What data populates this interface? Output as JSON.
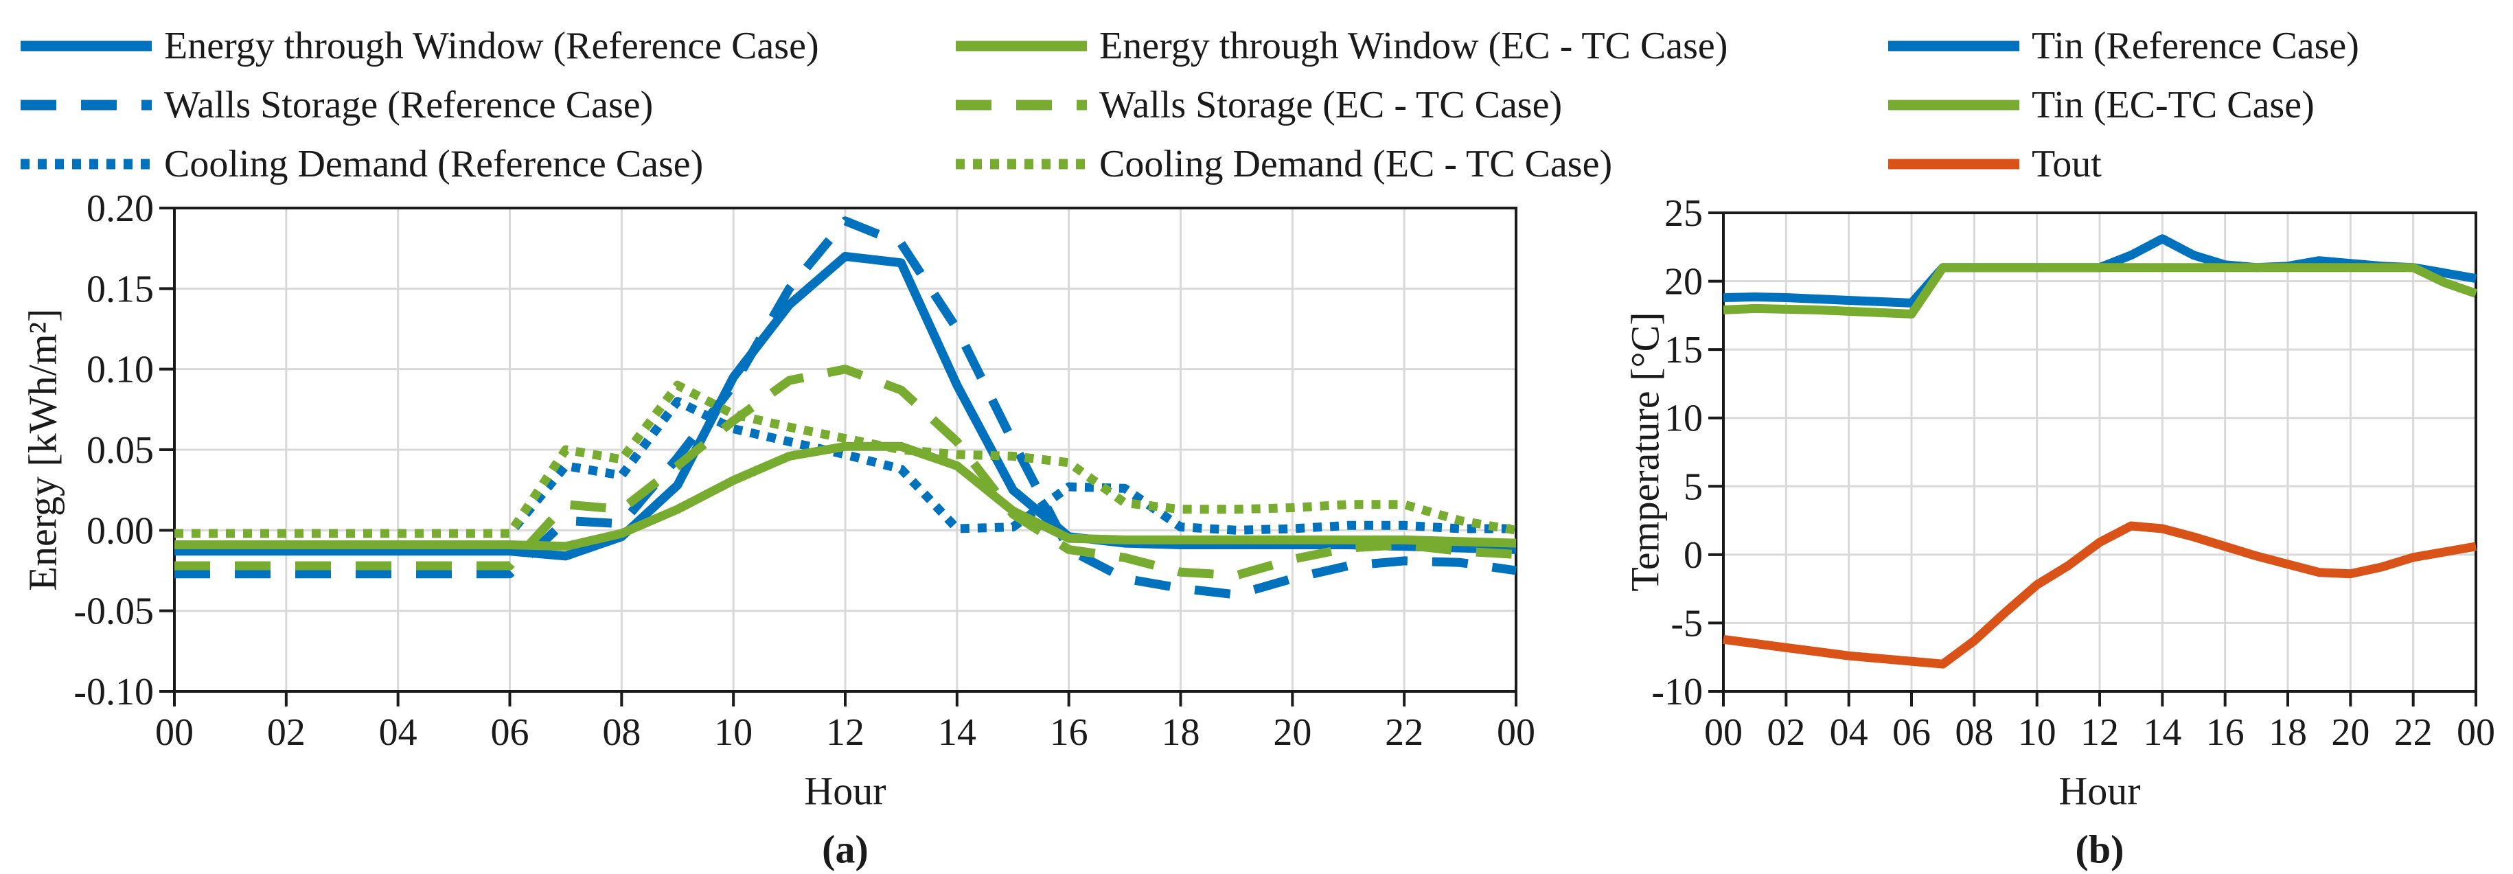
{
  "figure": {
    "background": "#ffffff",
    "accent_colors": {
      "reference_blue": "#0072BD",
      "ectc_green": "#77AC30",
      "tout_orange": "#D95319",
      "grid_gray": "#d9d9d9",
      "axis_black": "#1a1a1a"
    }
  },
  "chart_data": [
    {
      "type": "line",
      "panel_label": "(a)",
      "xlabel": "Hour",
      "ylabel": "Energy [kWh/m²]",
      "ylim": [
        -0.1,
        0.2
      ],
      "xlim": [
        0,
        24
      ],
      "grid": "on",
      "legend_position": "top, two columns",
      "x": [
        0,
        1,
        2,
        3,
        4,
        5,
        6,
        7,
        8,
        9,
        10,
        11,
        12,
        13,
        14,
        15,
        16,
        17,
        18,
        19,
        20,
        21,
        22,
        23,
        24
      ],
      "xticks": [
        0,
        2,
        4,
        6,
        8,
        10,
        12,
        14,
        16,
        18,
        20,
        22,
        24
      ],
      "xtick_labels": [
        "00",
        "02",
        "04",
        "06",
        "08",
        "10",
        "12",
        "14",
        "16",
        "18",
        "20",
        "22",
        "00"
      ],
      "yticks": [
        0.2,
        0.15,
        0.1,
        0.05,
        0.0,
        -0.05,
        -0.1
      ],
      "ytick_labels": [
        "0.20",
        "0.15",
        "0.10",
        "0.05",
        "0.00",
        "-0.05",
        "-0.10"
      ],
      "series": [
        {
          "name": "Energy through Window (Reference Case)",
          "color": "#0072BD",
          "style": "solid",
          "legend_column": 1,
          "values": [
            -0.013,
            -0.013,
            -0.013,
            -0.013,
            -0.013,
            -0.013,
            -0.013,
            -0.016,
            -0.004,
            0.028,
            0.095,
            0.14,
            0.17,
            0.166,
            0.09,
            0.025,
            -0.004,
            -0.008,
            -0.009,
            -0.009,
            -0.009,
            -0.009,
            -0.01,
            -0.011,
            -0.012
          ]
        },
        {
          "name": "Walls Storage (Reference Case)",
          "color": "#0072BD",
          "style": "dashed",
          "legend_column": 1,
          "values": [
            -0.027,
            -0.027,
            -0.027,
            -0.027,
            -0.027,
            -0.027,
            -0.027,
            0.006,
            0.004,
            0.045,
            0.09,
            0.15,
            0.192,
            0.178,
            0.125,
            0.055,
            -0.012,
            -0.03,
            -0.036,
            -0.04,
            -0.03,
            -0.022,
            -0.019,
            -0.02,
            -0.025
          ]
        },
        {
          "name": "Cooling Demand (Reference Case)",
          "color": "#0072BD",
          "style": "dotted",
          "legend_column": 1,
          "values": [
            -0.002,
            -0.002,
            -0.002,
            -0.002,
            -0.002,
            -0.002,
            -0.002,
            0.04,
            0.034,
            0.08,
            0.063,
            0.055,
            0.047,
            0.038,
            0.001,
            0.002,
            0.027,
            0.026,
            0.002,
            0.0,
            0.001,
            0.003,
            0.003,
            0.001,
            0.001
          ]
        },
        {
          "name": "Energy through Window (EC - TC Case)",
          "color": "#77AC30",
          "style": "solid",
          "legend_column": 2,
          "values": [
            -0.009,
            -0.009,
            -0.009,
            -0.009,
            -0.009,
            -0.009,
            -0.009,
            -0.01,
            -0.002,
            0.013,
            0.031,
            0.046,
            0.052,
            0.052,
            0.04,
            0.012,
            -0.005,
            -0.006,
            -0.006,
            -0.006,
            -0.006,
            -0.006,
            -0.006,
            -0.007,
            -0.008
          ]
        },
        {
          "name": "Walls Storage (EC - TC Case)",
          "color": "#77AC30",
          "style": "dashed",
          "legend_column": 2,
          "values": [
            -0.022,
            -0.022,
            -0.022,
            -0.022,
            -0.022,
            -0.022,
            -0.022,
            0.016,
            0.013,
            0.04,
            0.068,
            0.093,
            0.1,
            0.087,
            0.055,
            0.01,
            -0.012,
            -0.017,
            -0.026,
            -0.028,
            -0.018,
            -0.011,
            -0.009,
            -0.013,
            -0.015
          ]
        },
        {
          "name": "Cooling Demand (EC - TC Case)",
          "color": "#77AC30",
          "style": "dotted",
          "legend_column": 2,
          "values": [
            -0.002,
            -0.002,
            -0.002,
            -0.002,
            -0.002,
            -0.002,
            -0.002,
            0.05,
            0.044,
            0.09,
            0.072,
            0.064,
            0.057,
            0.05,
            0.047,
            0.046,
            0.042,
            0.017,
            0.013,
            0.013,
            0.014,
            0.016,
            0.016,
            0.006,
            0.0
          ]
        }
      ]
    },
    {
      "type": "line",
      "panel_label": "(b)",
      "xlabel": "Hour",
      "ylabel": "Temperature [°C]",
      "ylim": [
        -10,
        25
      ],
      "xlim": [
        0,
        24
      ],
      "grid": "on",
      "legend_position": "top",
      "x": [
        0,
        1,
        2,
        3,
        4,
        5,
        6,
        7,
        8,
        9,
        10,
        11,
        12,
        13,
        14,
        15,
        16,
        17,
        18,
        19,
        20,
        21,
        22,
        23,
        24
      ],
      "xticks": [
        0,
        2,
        4,
        6,
        8,
        10,
        12,
        14,
        16,
        18,
        20,
        22,
        24
      ],
      "xtick_labels": [
        "00",
        "02",
        "04",
        "06",
        "08",
        "10",
        "12",
        "14",
        "16",
        "18",
        "20",
        "22",
        "00"
      ],
      "yticks": [
        25,
        20,
        15,
        10,
        5,
        0,
        -5,
        -10
      ],
      "ytick_labels": [
        "25",
        "20",
        "15",
        "10",
        "5",
        "0",
        "-5",
        "-10"
      ],
      "series": [
        {
          "name": "Tin (Reference Case)",
          "color": "#0072BD",
          "style": "solid",
          "legend_column": 1,
          "values": [
            18.8,
            18.85,
            18.8,
            18.7,
            18.6,
            18.5,
            18.4,
            21.0,
            21.0,
            21.0,
            21.0,
            21.0,
            21.0,
            21.9,
            23.1,
            21.9,
            21.2,
            21.0,
            21.1,
            21.5,
            21.3,
            21.1,
            21.0,
            20.6,
            20.2
          ]
        },
        {
          "name": "Tin (EC-TC Case)",
          "color": "#77AC30",
          "style": "solid",
          "legend_column": 1,
          "values": [
            17.9,
            18.0,
            17.95,
            17.9,
            17.8,
            17.7,
            17.6,
            21.0,
            21.0,
            21.0,
            21.0,
            21.0,
            21.0,
            21.0,
            21.0,
            21.0,
            21.0,
            21.0,
            21.0,
            21.0,
            21.0,
            21.0,
            21.0,
            19.9,
            19.1
          ]
        },
        {
          "name": "Tout",
          "color": "#D95319",
          "style": "solid",
          "legend_column": 1,
          "values": [
            -6.2,
            -6.5,
            -6.8,
            -7.1,
            -7.4,
            -7.6,
            -7.8,
            -8.0,
            -6.3,
            -4.2,
            -2.2,
            -0.8,
            0.9,
            2.1,
            1.9,
            1.3,
            0.6,
            -0.1,
            -0.7,
            -1.3,
            -1.4,
            -0.9,
            -0.2,
            0.2,
            0.6
          ]
        }
      ]
    }
  ]
}
